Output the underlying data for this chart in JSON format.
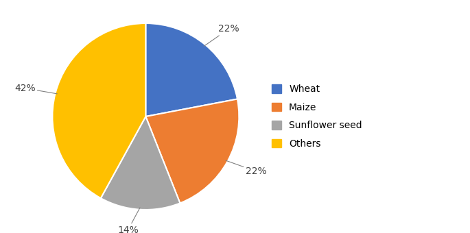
{
  "labels": [
    "Wheat",
    "Maize",
    "Sunflower seed",
    "Others"
  ],
  "values": [
    22,
    22,
    14,
    42
  ],
  "colors": [
    "#4472C4",
    "#ED7D31",
    "#A5A5A5",
    "#FFC000"
  ],
  "pct_labels": [
    "22%",
    "22%",
    "14%",
    "42%"
  ],
  "startangle": 90,
  "background_color": "#ffffff",
  "edge_color": "#ffffff",
  "figsize": [
    6.85,
    3.4
  ],
  "dpi": 100,
  "label_fontsize": 10,
  "legend_fontsize": 10
}
